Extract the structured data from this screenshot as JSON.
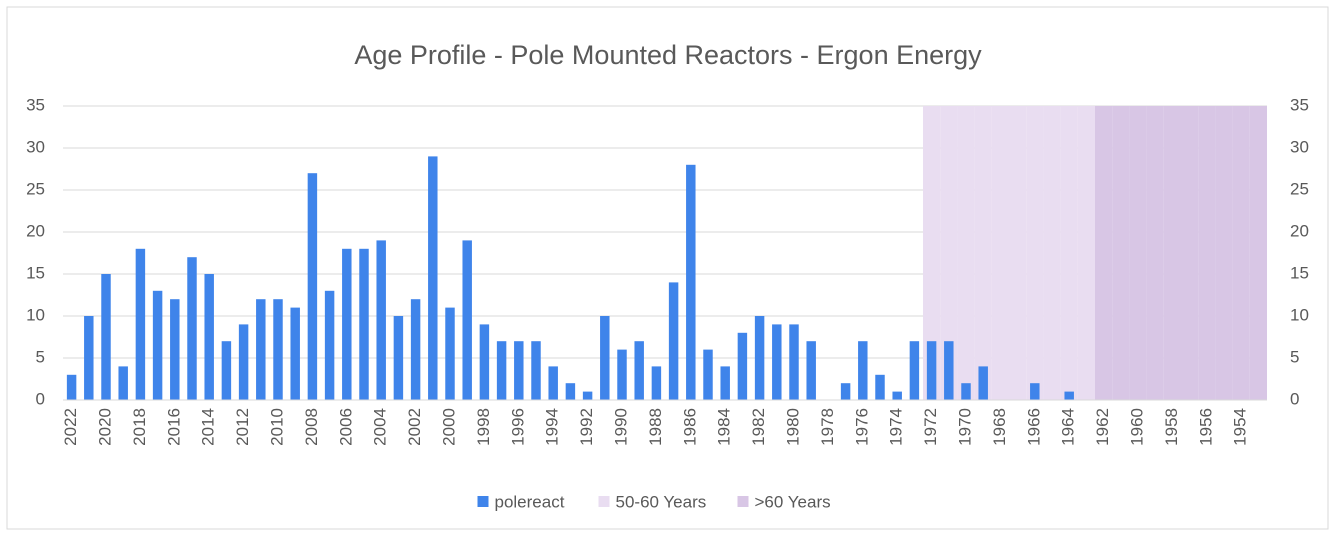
{
  "chart_data": {
    "type": "bar",
    "title": "Age Profile - Pole Mounted Reactors - Ergon Energy",
    "categories": [
      "2022",
      null,
      "2020",
      null,
      "2018",
      null,
      "2016",
      null,
      "2014",
      null,
      "2012",
      null,
      "2010",
      null,
      "2008",
      null,
      "2006",
      null,
      "2004",
      null,
      "2002",
      null,
      "2000",
      null,
      "1998",
      null,
      "1996",
      null,
      "1994",
      null,
      "1992",
      null,
      "1990",
      null,
      "1988",
      null,
      "1986",
      null,
      "1984",
      null,
      "1982",
      null,
      "1980",
      null,
      "1978",
      null,
      "1976",
      null,
      "1974",
      null,
      "1972",
      null,
      "1970",
      null,
      "1968",
      null,
      "1966",
      null,
      "1964",
      null,
      "1962",
      null,
      "1960",
      null,
      "1958",
      null,
      "1956",
      null,
      "1954",
      null
    ],
    "series": [
      {
        "name": "50-60 Years",
        "color": "#e9ddf1",
        "axis": "y2",
        "values": [
          null,
          null,
          null,
          null,
          null,
          null,
          null,
          null,
          null,
          null,
          null,
          null,
          null,
          null,
          null,
          null,
          null,
          null,
          null,
          null,
          null,
          null,
          null,
          null,
          null,
          null,
          null,
          null,
          null,
          null,
          null,
          null,
          null,
          null,
          null,
          null,
          null,
          null,
          null,
          null,
          null,
          null,
          null,
          null,
          null,
          null,
          null,
          null,
          null,
          null,
          35,
          35,
          35,
          35,
          35,
          35,
          35,
          35,
          35,
          35,
          null,
          null,
          null,
          null,
          null,
          null,
          null,
          null,
          null,
          null
        ]
      },
      {
        "name": ">60 Years",
        "color": "#d8c6e5",
        "axis": "y2",
        "values": [
          null,
          null,
          null,
          null,
          null,
          null,
          null,
          null,
          null,
          null,
          null,
          null,
          null,
          null,
          null,
          null,
          null,
          null,
          null,
          null,
          null,
          null,
          null,
          null,
          null,
          null,
          null,
          null,
          null,
          null,
          null,
          null,
          null,
          null,
          null,
          null,
          null,
          null,
          null,
          null,
          null,
          null,
          null,
          null,
          null,
          null,
          null,
          null,
          null,
          null,
          null,
          null,
          null,
          null,
          null,
          null,
          null,
          null,
          null,
          null,
          35,
          35,
          35,
          35,
          35,
          35,
          35,
          35,
          35,
          35
        ]
      },
      {
        "name": "polereact",
        "color": "#3f84ea",
        "values": [
          3,
          10,
          15,
          4,
          18,
          13,
          12,
          17,
          15,
          7,
          9,
          12,
          12,
          11,
          27,
          13,
          18,
          18,
          19,
          10,
          12,
          29,
          11,
          19,
          9,
          7,
          7,
          7,
          4,
          2,
          1,
          10,
          6,
          7,
          4,
          14,
          28,
          6,
          4,
          8,
          10,
          9,
          9,
          7,
          0,
          2,
          7,
          3,
          1,
          7,
          7,
          7,
          2,
          4,
          0,
          0,
          2,
          0,
          1,
          0,
          0,
          0,
          0,
          0,
          0,
          0,
          0,
          0,
          0,
          0
        ]
      }
    ],
    "ylim": [
      0,
      35
    ],
    "yticks": [
      0,
      5,
      10,
      15,
      20,
      25,
      30,
      35
    ],
    "y2lim": [
      0,
      35
    ],
    "y2ticks": [
      0,
      5,
      10,
      15,
      20,
      25,
      30,
      35
    ],
    "grid": true,
    "legend": "bottom"
  }
}
